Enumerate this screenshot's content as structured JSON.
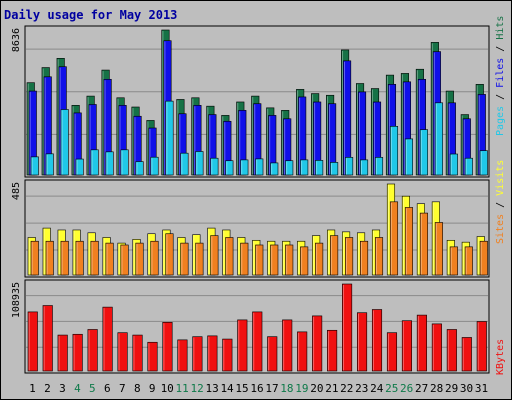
{
  "title": "Daily usage for May 2013",
  "colors": {
    "hits": "#167246",
    "files": "#1010e8",
    "pages": "#20c8e8",
    "visits": "#ffff30",
    "sites": "#f08020",
    "kbytes": "#f01010",
    "grid": "#8a8a8a",
    "weekend_label": "#0f7a4a",
    "weekday_label": "#000000"
  },
  "chart_data": [
    {
      "type": "bar",
      "name": "traffic",
      "ymax_label": "8636",
      "ylim": [
        0,
        8636
      ],
      "legend_left_to_right": [
        "Pages",
        "Files",
        "Hits"
      ],
      "legend_colors": [
        "#20c8e8",
        "#1010e8",
        "#167246"
      ],
      "legend_separator": "/",
      "categories": [
        "1",
        "2",
        "3",
        "4",
        "5",
        "6",
        "7",
        "8",
        "9",
        "10",
        "11",
        "12",
        "13",
        "14",
        "15",
        "16",
        "17",
        "18",
        "19",
        "20",
        "21",
        "22",
        "23",
        "24",
        "25",
        "26",
        "27",
        "28",
        "29",
        "30",
        "31"
      ],
      "series": [
        {
          "name": "Hits",
          "values": [
            5500,
            6400,
            6950,
            4150,
            4700,
            6250,
            4600,
            4050,
            3250,
            8636,
            4500,
            4600,
            4100,
            3550,
            4350,
            4700,
            4000,
            3850,
            5100,
            4850,
            4750,
            7450,
            5450,
            5150,
            5950,
            6050,
            6300,
            7900,
            5000,
            3600,
            5400
          ]
        },
        {
          "name": "Files",
          "values": [
            5000,
            5850,
            6450,
            3700,
            4200,
            5700,
            4150,
            3500,
            2800,
            8000,
            3650,
            4150,
            3600,
            3200,
            3850,
            4250,
            3550,
            3350,
            4650,
            4350,
            4250,
            6800,
            4950,
            4350,
            5400,
            5550,
            5700,
            7350,
            4300,
            3350,
            4800
          ]
        },
        {
          "name": "Pages",
          "values": [
            1080,
            1260,
            3900,
            950,
            1500,
            1380,
            1500,
            800,
            1060,
            4400,
            1300,
            1400,
            1000,
            850,
            900,
            960,
            720,
            850,
            900,
            870,
            750,
            1050,
            900,
            1050,
            2900,
            2150,
            2700,
            4300,
            1250,
            1000,
            1450
          ]
        }
      ]
    },
    {
      "type": "bar",
      "name": "visitors",
      "ymax_label": "485",
      "ylim": [
        0,
        485
      ],
      "legend_left_to_right": [
        "Sites",
        "Visits"
      ],
      "legend_colors": [
        "#f08020",
        "#ffff30"
      ],
      "legend_separator": "/",
      "categories": [
        "1",
        "2",
        "3",
        "4",
        "5",
        "6",
        "7",
        "8",
        "9",
        "10",
        "11",
        "12",
        "13",
        "14",
        "15",
        "16",
        "17",
        "18",
        "19",
        "20",
        "21",
        "22",
        "23",
        "24",
        "25",
        "26",
        "27",
        "28",
        "29",
        "30",
        "31"
      ],
      "series": [
        {
          "name": "Visits",
          "values": [
            200,
            250,
            240,
            240,
            225,
            200,
            170,
            190,
            220,
            240,
            200,
            215,
            250,
            240,
            200,
            185,
            180,
            180,
            180,
            210,
            240,
            230,
            225,
            240,
            485,
            420,
            380,
            390,
            185,
            175,
            205
          ]
        },
        {
          "name": "Sites",
          "values": [
            180,
            180,
            180,
            180,
            180,
            170,
            160,
            170,
            180,
            220,
            170,
            170,
            210,
            200,
            170,
            160,
            160,
            160,
            150,
            170,
            210,
            200,
            180,
            200,
            390,
            360,
            330,
            280,
            150,
            150,
            180
          ]
        }
      ]
    },
    {
      "type": "bar",
      "name": "kbytes",
      "ymax_label": "108935",
      "ylim": [
        0,
        108935
      ],
      "legend_left_to_right": [
        "KBytes"
      ],
      "legend_colors": [
        "#f01010"
      ],
      "categories": [
        "1",
        "2",
        "3",
        "4",
        "5",
        "6",
        "7",
        "8",
        "9",
        "10",
        "11",
        "12",
        "13",
        "14",
        "15",
        "16",
        "17",
        "18",
        "19",
        "20",
        "21",
        "22",
        "23",
        "24",
        "25",
        "26",
        "27",
        "28",
        "29",
        "30",
        "31"
      ],
      "series": [
        {
          "name": "KBytes",
          "values": [
            74000,
            82000,
            45000,
            46000,
            52000,
            80000,
            48000,
            45000,
            36000,
            61000,
            39000,
            43000,
            44000,
            40000,
            64000,
            74000,
            43000,
            64000,
            49000,
            69000,
            51000,
            108935,
            73000,
            77000,
            48000,
            63000,
            70000,
            59000,
            52000,
            42000,
            62000
          ]
        }
      ]
    }
  ],
  "days": [
    {
      "label": "1",
      "weekend": false
    },
    {
      "label": "2",
      "weekend": false
    },
    {
      "label": "3",
      "weekend": false
    },
    {
      "label": "4",
      "weekend": true
    },
    {
      "label": "5",
      "weekend": true
    },
    {
      "label": "6",
      "weekend": false
    },
    {
      "label": "7",
      "weekend": false
    },
    {
      "label": "8",
      "weekend": false
    },
    {
      "label": "9",
      "weekend": false
    },
    {
      "label": "10",
      "weekend": false
    },
    {
      "label": "11",
      "weekend": true
    },
    {
      "label": "12",
      "weekend": true
    },
    {
      "label": "13",
      "weekend": false
    },
    {
      "label": "14",
      "weekend": false
    },
    {
      "label": "15",
      "weekend": false
    },
    {
      "label": "16",
      "weekend": false
    },
    {
      "label": "17",
      "weekend": false
    },
    {
      "label": "18",
      "weekend": true
    },
    {
      "label": "19",
      "weekend": true
    },
    {
      "label": "20",
      "weekend": false
    },
    {
      "label": "21",
      "weekend": false
    },
    {
      "label": "22",
      "weekend": false
    },
    {
      "label": "23",
      "weekend": false
    },
    {
      "label": "24",
      "weekend": false
    },
    {
      "label": "25",
      "weekend": true
    },
    {
      "label": "26",
      "weekend": true
    },
    {
      "label": "27",
      "weekend": false
    },
    {
      "label": "28",
      "weekend": false
    },
    {
      "label": "29",
      "weekend": false
    },
    {
      "label": "30",
      "weekend": false
    },
    {
      "label": "31",
      "weekend": false
    }
  ]
}
